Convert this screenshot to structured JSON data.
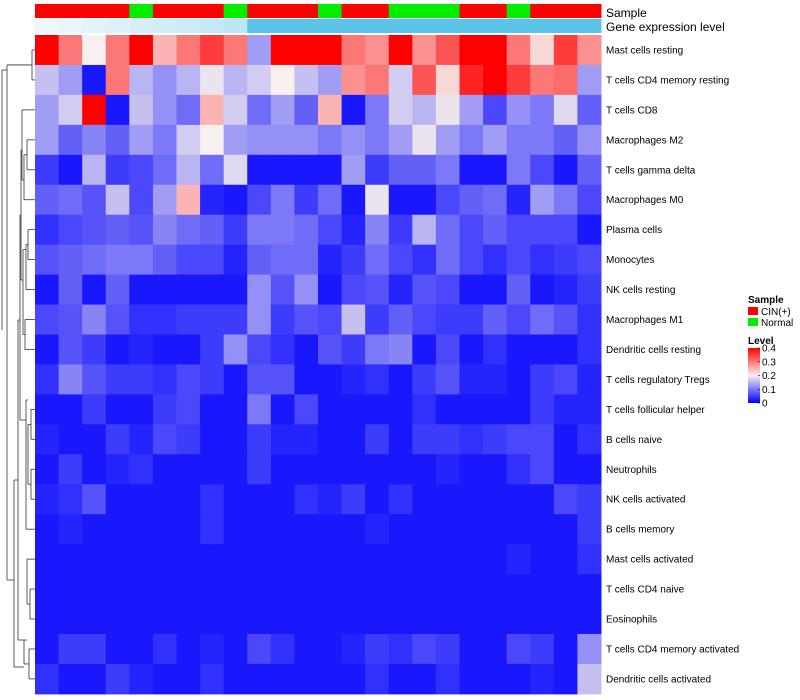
{
  "chart_data": {
    "type": "heatmap",
    "title": "",
    "rows": [
      "Mast cells resting",
      "T cells CD4 memory resting",
      "T cells CD8",
      "Macrophages M2",
      "T cells gamma delta",
      "Macrophages M0",
      "Plasma cells",
      "Monocytes",
      "NK cells resting",
      "Macrophages M1",
      "Dendritic cells resting",
      "T cells regulatory  Tregs",
      "T cells follicular helper",
      "B cells naive",
      "Neutrophils",
      "NK cells activated",
      "B cells memory",
      "Mast cells activated",
      "T cells CD4 naive",
      "Eosinophils",
      "T cells CD4 memory activated",
      "Dendritic cells activated"
    ],
    "column_count": 24,
    "values": [
      [
        0.4,
        0.3,
        0.2,
        0.3,
        0.4,
        0.25,
        0.3,
        0.35,
        0.3,
        0.13,
        0.4,
        0.4,
        0.4,
        0.3,
        0.28,
        0.4,
        0.28,
        0.33,
        0.4,
        0.4,
        0.3,
        0.22,
        0.35,
        0.28
      ],
      [
        0.16,
        0.13,
        0.02,
        0.3,
        0.15,
        0.12,
        0.15,
        0.19,
        0.15,
        0.17,
        0.2,
        0.16,
        0.13,
        0.28,
        0.3,
        0.17,
        0.33,
        0.22,
        0.37,
        0.4,
        0.35,
        0.3,
        0.31,
        0.13
      ],
      [
        0.13,
        0.17,
        0.4,
        0.02,
        0.16,
        0.12,
        0.09,
        0.25,
        0.17,
        0.09,
        0.13,
        0.08,
        0.25,
        0.02,
        0.1,
        0.17,
        0.15,
        0.19,
        0.13,
        0.06,
        0.12,
        0.1,
        0.18,
        0.08
      ],
      [
        0.13,
        0.08,
        0.11,
        0.08,
        0.13,
        0.1,
        0.17,
        0.2,
        0.13,
        0.12,
        0.12,
        0.12,
        0.1,
        0.12,
        0.1,
        0.13,
        0.19,
        0.13,
        0.1,
        0.13,
        0.1,
        0.1,
        0.08,
        0.12
      ],
      [
        0.05,
        0.02,
        0.15,
        0.05,
        0.06,
        0.09,
        0.15,
        0.09,
        0.18,
        0.02,
        0.02,
        0.02,
        0.02,
        0.13,
        0.05,
        0.08,
        0.08,
        0.1,
        0.02,
        0.02,
        0.1,
        0.06,
        0.02,
        0.08
      ],
      [
        0.08,
        0.09,
        0.07,
        0.16,
        0.06,
        0.13,
        0.25,
        0.03,
        0.02,
        0.06,
        0.1,
        0.05,
        0.09,
        0.02,
        0.19,
        0.02,
        0.02,
        0.06,
        0.08,
        0.09,
        0.03,
        0.13,
        0.1,
        0.06
      ],
      [
        0.04,
        0.06,
        0.07,
        0.08,
        0.07,
        0.11,
        0.09,
        0.08,
        0.05,
        0.1,
        0.1,
        0.09,
        0.06,
        0.03,
        0.11,
        0.05,
        0.15,
        0.09,
        0.06,
        0.08,
        0.06,
        0.06,
        0.06,
        0.02
      ],
      [
        0.07,
        0.08,
        0.09,
        0.1,
        0.1,
        0.08,
        0.06,
        0.06,
        0.03,
        0.08,
        0.09,
        0.09,
        0.03,
        0.05,
        0.09,
        0.06,
        0.04,
        0.09,
        0.06,
        0.04,
        0.06,
        0.04,
        0.05,
        0.06
      ],
      [
        0.02,
        0.08,
        0.02,
        0.08,
        0.02,
        0.02,
        0.02,
        0.02,
        0.02,
        0.12,
        0.07,
        0.12,
        0.02,
        0.06,
        0.07,
        0.03,
        0.07,
        0.06,
        0.02,
        0.02,
        0.08,
        0.02,
        0.03,
        0.05
      ],
      [
        0.06,
        0.07,
        0.11,
        0.07,
        0.04,
        0.04,
        0.05,
        0.05,
        0.05,
        0.12,
        0.05,
        0.07,
        0.06,
        0.16,
        0.05,
        0.08,
        0.06,
        0.05,
        0.05,
        0.08,
        0.06,
        0.09,
        0.07,
        0.04
      ],
      [
        0.02,
        0.07,
        0.05,
        0.02,
        0.03,
        0.02,
        0.02,
        0.05,
        0.12,
        0.06,
        0.04,
        0.02,
        0.07,
        0.05,
        0.1,
        0.11,
        0.02,
        0.06,
        0.02,
        0.04,
        0.02,
        0.02,
        0.02,
        0.04
      ],
      [
        0.04,
        0.11,
        0.07,
        0.05,
        0.05,
        0.04,
        0.06,
        0.05,
        0.02,
        0.07,
        0.07,
        0.02,
        0.02,
        0.03,
        0.04,
        0.02,
        0.05,
        0.07,
        0.03,
        0.03,
        0.02,
        0.05,
        0.06,
        0.03
      ],
      [
        0.02,
        0.02,
        0.05,
        0.02,
        0.02,
        0.05,
        0.06,
        0.02,
        0.02,
        0.1,
        0.02,
        0.06,
        0.02,
        0.02,
        0.02,
        0.02,
        0.04,
        0.02,
        0.02,
        0.02,
        0.02,
        0.05,
        0.03,
        0.03
      ],
      [
        0.03,
        0.02,
        0.02,
        0.05,
        0.03,
        0.06,
        0.05,
        0.02,
        0.02,
        0.05,
        0.03,
        0.03,
        0.02,
        0.02,
        0.05,
        0.02,
        0.05,
        0.05,
        0.04,
        0.05,
        0.06,
        0.06,
        0.02,
        0.04
      ],
      [
        0.02,
        0.05,
        0.02,
        0.03,
        0.04,
        0.02,
        0.02,
        0.02,
        0.02,
        0.05,
        0.02,
        0.02,
        0.02,
        0.02,
        0.02,
        0.02,
        0.02,
        0.03,
        0.02,
        0.02,
        0.04,
        0.06,
        0.02,
        0.02
      ],
      [
        0.03,
        0.04,
        0.07,
        0.02,
        0.02,
        0.02,
        0.02,
        0.04,
        0.02,
        0.02,
        0.02,
        0.04,
        0.03,
        0.05,
        0.02,
        0.04,
        0.02,
        0.02,
        0.02,
        0.02,
        0.02,
        0.02,
        0.06,
        0.05
      ],
      [
        0.02,
        0.03,
        0.02,
        0.02,
        0.02,
        0.02,
        0.02,
        0.04,
        0.02,
        0.02,
        0.02,
        0.02,
        0.02,
        0.02,
        0.03,
        0.02,
        0.02,
        0.02,
        0.02,
        0.02,
        0.02,
        0.02,
        0.02,
        0.05
      ],
      [
        0.02,
        0.02,
        0.02,
        0.02,
        0.02,
        0.02,
        0.02,
        0.02,
        0.02,
        0.02,
        0.02,
        0.02,
        0.02,
        0.02,
        0.02,
        0.02,
        0.02,
        0.02,
        0.02,
        0.02,
        0.03,
        0.02,
        0.02,
        0.04
      ],
      [
        0.02,
        0.02,
        0.02,
        0.02,
        0.02,
        0.02,
        0.02,
        0.02,
        0.02,
        0.02,
        0.02,
        0.02,
        0.02,
        0.02,
        0.02,
        0.02,
        0.02,
        0.02,
        0.02,
        0.02,
        0.02,
        0.02,
        0.02,
        0.02
      ],
      [
        0.02,
        0.02,
        0.02,
        0.02,
        0.02,
        0.02,
        0.02,
        0.02,
        0.02,
        0.02,
        0.02,
        0.02,
        0.02,
        0.02,
        0.02,
        0.02,
        0.02,
        0.02,
        0.02,
        0.02,
        0.02,
        0.02,
        0.02,
        0.02
      ],
      [
        0.02,
        0.05,
        0.05,
        0.02,
        0.02,
        0.04,
        0.02,
        0.03,
        0.02,
        0.06,
        0.04,
        0.02,
        0.02,
        0.03,
        0.05,
        0.04,
        0.06,
        0.05,
        0.02,
        0.02,
        0.06,
        0.05,
        0.02,
        0.12
      ],
      [
        0.04,
        0.02,
        0.02,
        0.05,
        0.03,
        0.02,
        0.02,
        0.04,
        0.02,
        0.02,
        0.02,
        0.02,
        0.02,
        0.02,
        0.04,
        0.02,
        0.02,
        0.04,
        0.02,
        0.02,
        0.02,
        0.03,
        0.02,
        0.16
      ]
    ],
    "column_annotations": {
      "sample": [
        "CIN(+)",
        "CIN(+)",
        "CIN(+)",
        "CIN(+)",
        "Normal",
        "CIN(+)",
        "CIN(+)",
        "CIN(+)",
        "Normal",
        "CIN(+)",
        "CIN(+)",
        "CIN(+)",
        "Normal",
        "CIN(+)",
        "CIN(+)",
        "Normal",
        "Normal",
        "Normal",
        "CIN(+)",
        "CIN(+)",
        "Normal",
        "CIN(+)",
        "CIN(+)",
        "CIN(+)"
      ],
      "gene_expression_level": [
        "low",
        "low",
        "low",
        "low",
        "low",
        "low",
        "low",
        "low",
        "low",
        "high",
        "high",
        "high",
        "high",
        "high",
        "high",
        "high",
        "high",
        "high",
        "high",
        "high",
        "high",
        "high",
        "high",
        "high"
      ]
    },
    "color_scale": {
      "min": 0,
      "mid": 0.2,
      "max": 0.4,
      "low_color": "#0000ff",
      "mid_color": "#f7f0ee",
      "high_color": "#ff0000"
    },
    "row_dendrogram": true,
    "legend": {
      "position": "right",
      "sample_title": "Sample",
      "sample_entries": [
        {
          "label": "CIN(+)",
          "color": "#ff0000"
        },
        {
          "label": "Normal",
          "color": "#00ee00"
        }
      ],
      "level_title": "Level",
      "level_ticks": [
        "0.4",
        "0.3",
        "0.2",
        "0.1",
        "0"
      ],
      "level_tick_values": [
        0.4,
        0.3,
        0.2,
        0.1,
        0
      ]
    },
    "annotation_track_labels": [
      "Sample",
      "Gene expression level"
    ],
    "annotation_colors": {
      "gene_expression_low": "#eef8fc",
      "gene_expression_high": "#5cc4e8"
    }
  }
}
